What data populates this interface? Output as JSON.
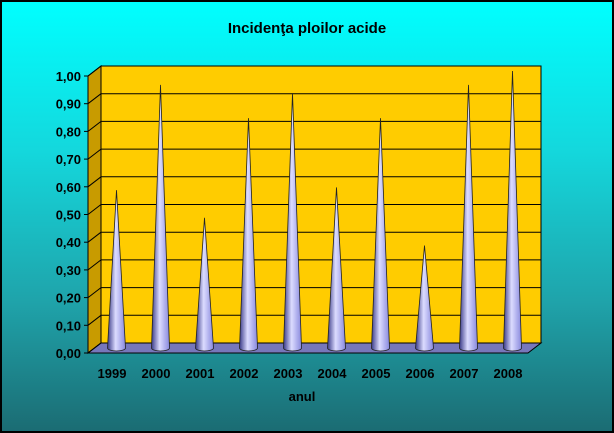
{
  "chart_data": {
    "type": "bar",
    "title": "Incidenţa ploilor acide",
    "xlabel": "anul",
    "ylabel": "",
    "categories": [
      "1999",
      "2000",
      "2001",
      "2002",
      "2003",
      "2004",
      "2005",
      "2006",
      "2007",
      "2008"
    ],
    "values": [
      0.57,
      0.95,
      0.47,
      0.83,
      0.92,
      0.58,
      0.83,
      0.37,
      0.95,
      1.0
    ],
    "ylim": [
      0,
      1.0
    ],
    "yticks": [
      "0,00",
      "0,10",
      "0,20",
      "0,30",
      "0,40",
      "0,50",
      "0,60",
      "0,70",
      "0,80",
      "0,90",
      "1,00"
    ],
    "grid": true,
    "bar_style": "3d-cone",
    "colors": {
      "plot_back": "#ffcc00",
      "plot_side": "#c89b00",
      "plot_floor": "#7777bb",
      "cone_light": "#dcdcff",
      "cone_mid": "#8888dd",
      "cone_dark": "#3a3a88",
      "frame_top": "#00ffff",
      "frame_bottom": "#1b6c73"
    }
  }
}
